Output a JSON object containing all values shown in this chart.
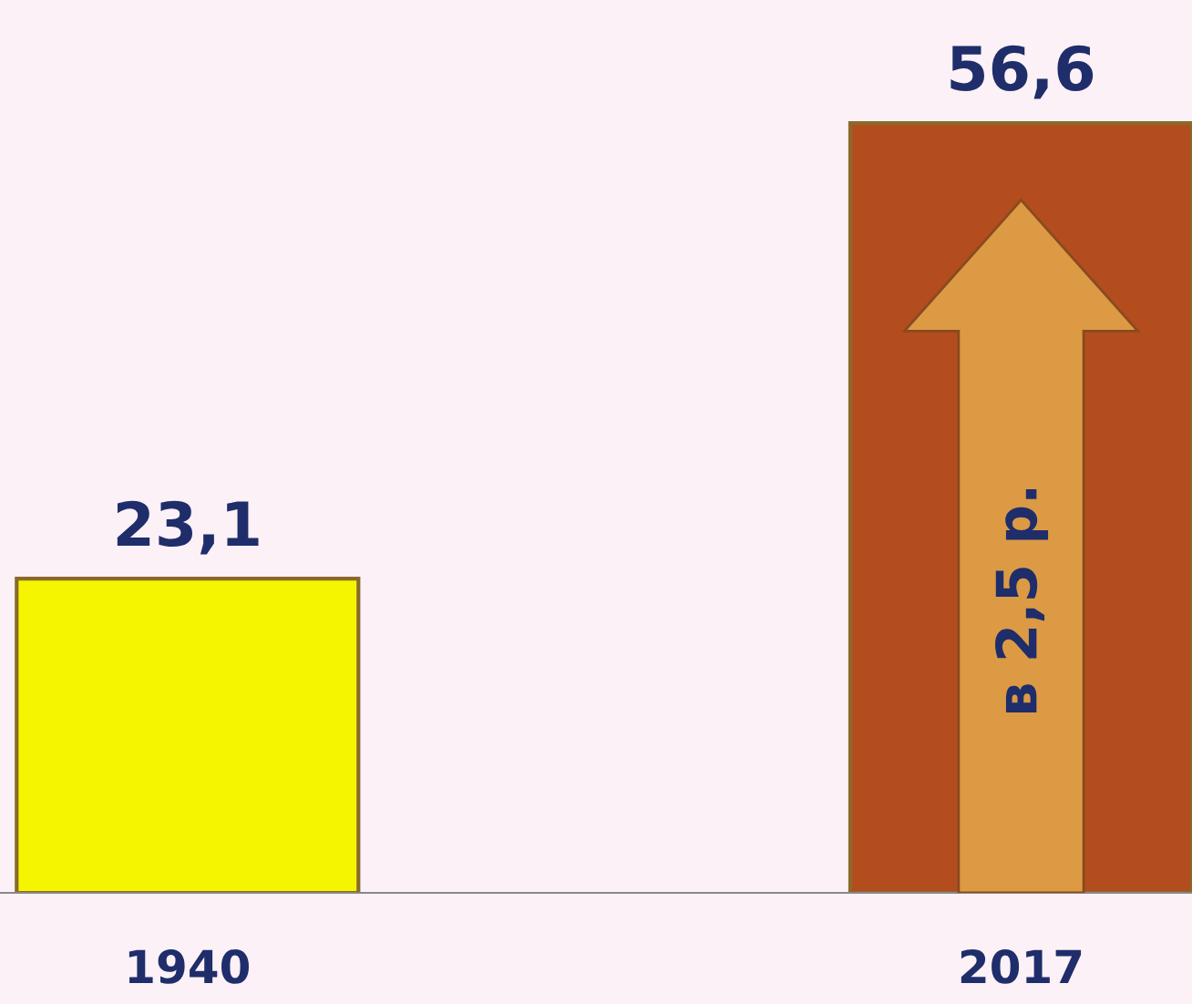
{
  "chart_data": {
    "type": "bar",
    "categories": [
      "1940",
      "2017"
    ],
    "values": [
      23.1,
      56.6
    ],
    "colors": [
      "#f5f500",
      "#b34d1e"
    ],
    "value_labels": [
      "23,1",
      "56,6"
    ],
    "annotations": [
      "в 2,5 р."
    ],
    "grid": false
  }
}
